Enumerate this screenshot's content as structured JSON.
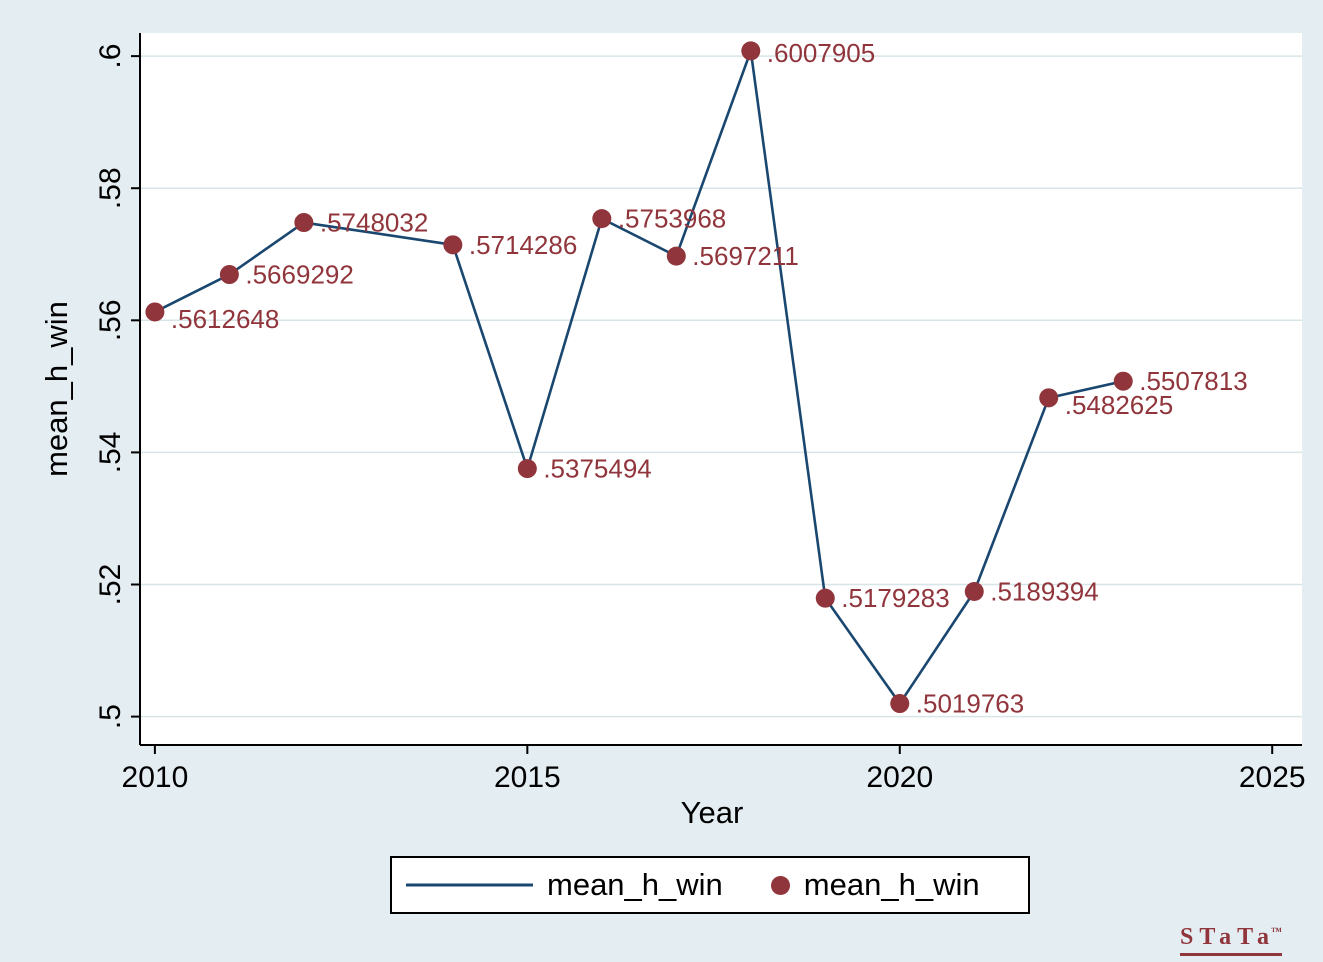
{
  "page": {
    "background": "#e3edf2",
    "plot_background": "#ffffff",
    "gridline_color": "#d7e4e8",
    "axis_color": "#000000"
  },
  "chart_data": {
    "type": "line",
    "title": "",
    "xlabel": "Year",
    "ylabel": "mean_h_win",
    "grid": true,
    "legend_position": "bottom",
    "x_ticks": [
      2010,
      2015,
      2020,
      2025
    ],
    "x_tick_labels": [
      "2010",
      "2015",
      "2020",
      "2025"
    ],
    "y_ticks": [
      0.5,
      0.52,
      0.54,
      0.56,
      0.58,
      0.6
    ],
    "y_tick_labels": [
      ".5",
      ".52",
      ".54",
      ".56",
      ".58",
      ".6"
    ],
    "x_range": [
      2009.8,
      2025.4
    ],
    "y_range": [
      0.4957,
      0.6035
    ],
    "line_color": "#1a476f",
    "marker_color": "#90353b",
    "label_color": "#90353b",
    "series": [
      {
        "name": "mean_h_win",
        "points": [
          {
            "x": 2010,
            "y": 0.5612648,
            "label": ".5612648",
            "label_dy": 7
          },
          {
            "x": 2011,
            "y": 0.5669292,
            "label": ".5669292",
            "label_dy": 0
          },
          {
            "x": 2012,
            "y": 0.5748032,
            "label": ".5748032",
            "label_dy": 0
          },
          {
            "x": 2014,
            "y": 0.5714286,
            "label": ".5714286",
            "label_dy": 0
          },
          {
            "x": 2015,
            "y": 0.5375494,
            "label": ".5375494",
            "label_dy": 0
          },
          {
            "x": 2016,
            "y": 0.5753968,
            "label": ".5753968",
            "label_dy": 0
          },
          {
            "x": 2017,
            "y": 0.5697211,
            "label": ".5697211",
            "label_dy": 0
          },
          {
            "x": 2018,
            "y": 0.6007905,
            "label": ".6007905",
            "label_dy": 2
          },
          {
            "x": 2019,
            "y": 0.5179283,
            "label": ".5179283",
            "label_dy": 0
          },
          {
            "x": 2020,
            "y": 0.5019763,
            "label": ".5019763",
            "label_dy": 0
          },
          {
            "x": 2021,
            "y": 0.5189394,
            "label": ".5189394",
            "label_dy": 0
          },
          {
            "x": 2022,
            "y": 0.5482625,
            "label": ".5482625",
            "label_dy": 7
          },
          {
            "x": 2023,
            "y": 0.5507813,
            "label": ".5507813",
            "label_dy": 0
          }
        ]
      }
    ],
    "legend": {
      "entries": [
        {
          "type": "line",
          "label": "mean_h_win"
        },
        {
          "type": "marker",
          "label": "mean_h_win"
        }
      ]
    }
  },
  "branding": {
    "logo_text": "STaTa",
    "trademark": "™"
  }
}
